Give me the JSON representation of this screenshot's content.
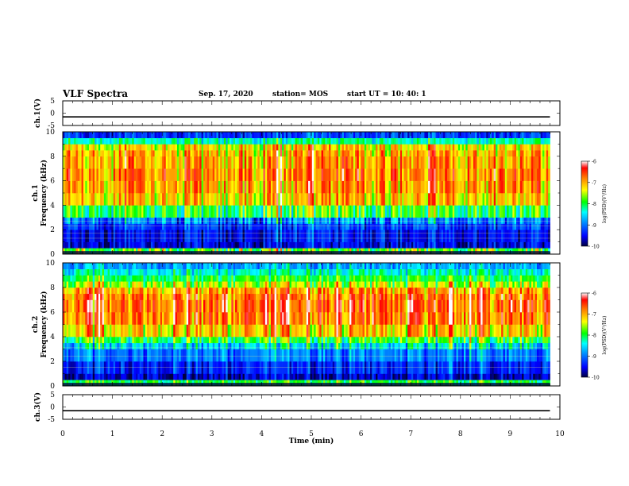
{
  "header": {
    "title": "VLF Spectra",
    "date": "Sep. 17, 2020",
    "station": "station= MOS",
    "start_ut": "start  UT =   10: 40: 1"
  },
  "axes": {
    "x_label": "Time  (min)",
    "x_ticks": [
      "0",
      "1",
      "2",
      "3",
      "4",
      "5",
      "6",
      "7",
      "8",
      "9",
      "10"
    ],
    "ch1_voltage_label": "ch.1(V)",
    "ch3_voltage_label": "ch.3(V)",
    "voltage_ticks": [
      "5",
      "0",
      "-5"
    ],
    "freq_ticks": [
      "0",
      "2",
      "4",
      "6",
      "8",
      "10"
    ],
    "ch1_spec_label": "ch.1",
    "ch2_spec_label": "ch.2",
    "freq_label": "Frequency  (kHz)",
    "colorbar_label": "log(PSD)(V²/Hz)",
    "colorbar_ticks": [
      "-6",
      "-7",
      "-8",
      "-9",
      "-10"
    ]
  },
  "colors": {
    "colormap": [
      "#000040",
      "#0000ff",
      "#00a0ff",
      "#00ffff",
      "#00ff00",
      "#ffff00",
      "#ff8000",
      "#ff0000",
      "#ffffff"
    ]
  },
  "chart_data": [
    {
      "type": "line",
      "title": "ch.1(V)",
      "xlabel": "Time  (min)",
      "ylabel": "ch.1(V)",
      "xlim": [
        0,
        10
      ],
      "ylim": [
        -5,
        5
      ],
      "x": [
        0,
        9.8
      ],
      "y": [
        -1.5,
        -1.5
      ]
    },
    {
      "type": "heatmap",
      "title": "ch.1",
      "xlabel": "Time  (min)",
      "ylabel": "Frequency  (kHz)",
      "xlim": [
        0,
        9.8
      ],
      "ylim": [
        0,
        10
      ],
      "colorbar_range": [
        -10,
        -6
      ],
      "freq_bands_khz": [
        0,
        0.5,
        1,
        2,
        2.5,
        3,
        4,
        5,
        6,
        7,
        8,
        8.5,
        9,
        9.5,
        10
      ],
      "typical_log_psd": [
        -8.0,
        -9.6,
        -9.5,
        -9.3,
        -9.0,
        -8.0,
        -7.2,
        -7.0,
        -6.9,
        -7.0,
        -7.1,
        -7.3,
        -8.3,
        -9.3,
        -9.8
      ]
    },
    {
      "type": "heatmap",
      "title": "ch.2",
      "xlabel": "Time  (min)",
      "ylabel": "Frequency  (kHz)",
      "xlim": [
        0,
        9.8
      ],
      "ylim": [
        0,
        10
      ],
      "colorbar_range": [
        -10,
        -6
      ],
      "freq_bands_khz": [
        0,
        0.5,
        1,
        2,
        3,
        3.5,
        4,
        5,
        6,
        7,
        7.5,
        8,
        8.5,
        9,
        9.5,
        10
      ],
      "typical_log_psd": [
        -8.0,
        -9.7,
        -9.4,
        -9.0,
        -8.6,
        -8.0,
        -7.2,
        -6.8,
        -6.7,
        -6.8,
        -7.0,
        -7.6,
        -8.0,
        -8.4,
        -8.8,
        -9.2
      ]
    },
    {
      "type": "line",
      "title": "ch.3(V)",
      "xlabel": "Time  (min)",
      "ylabel": "ch.3(V)",
      "xlim": [
        0,
        10
      ],
      "ylim": [
        -5,
        5
      ],
      "x": [
        0,
        9.8
      ],
      "y": [
        -1.5,
        -1.5
      ]
    }
  ]
}
